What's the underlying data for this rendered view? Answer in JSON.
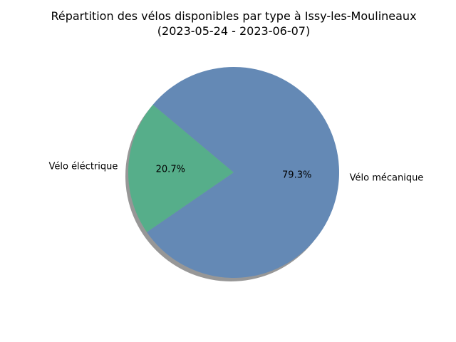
{
  "chart_data": {
    "type": "pie",
    "title": "Répartition des vélos disponibles par type à Issy-les-Moulineaux",
    "subtitle": "(2023-05-24 - 2023-06-07)",
    "slices": [
      {
        "label": "Vélo éléctrique",
        "value": 20.7,
        "pct_label": "20.7%",
        "color": "#56ae8a"
      },
      {
        "label": "Vélo mécanique",
        "value": 79.3,
        "pct_label": "79.3%",
        "color": "#6489b5"
      }
    ],
    "shadow": true,
    "legend": "none"
  }
}
